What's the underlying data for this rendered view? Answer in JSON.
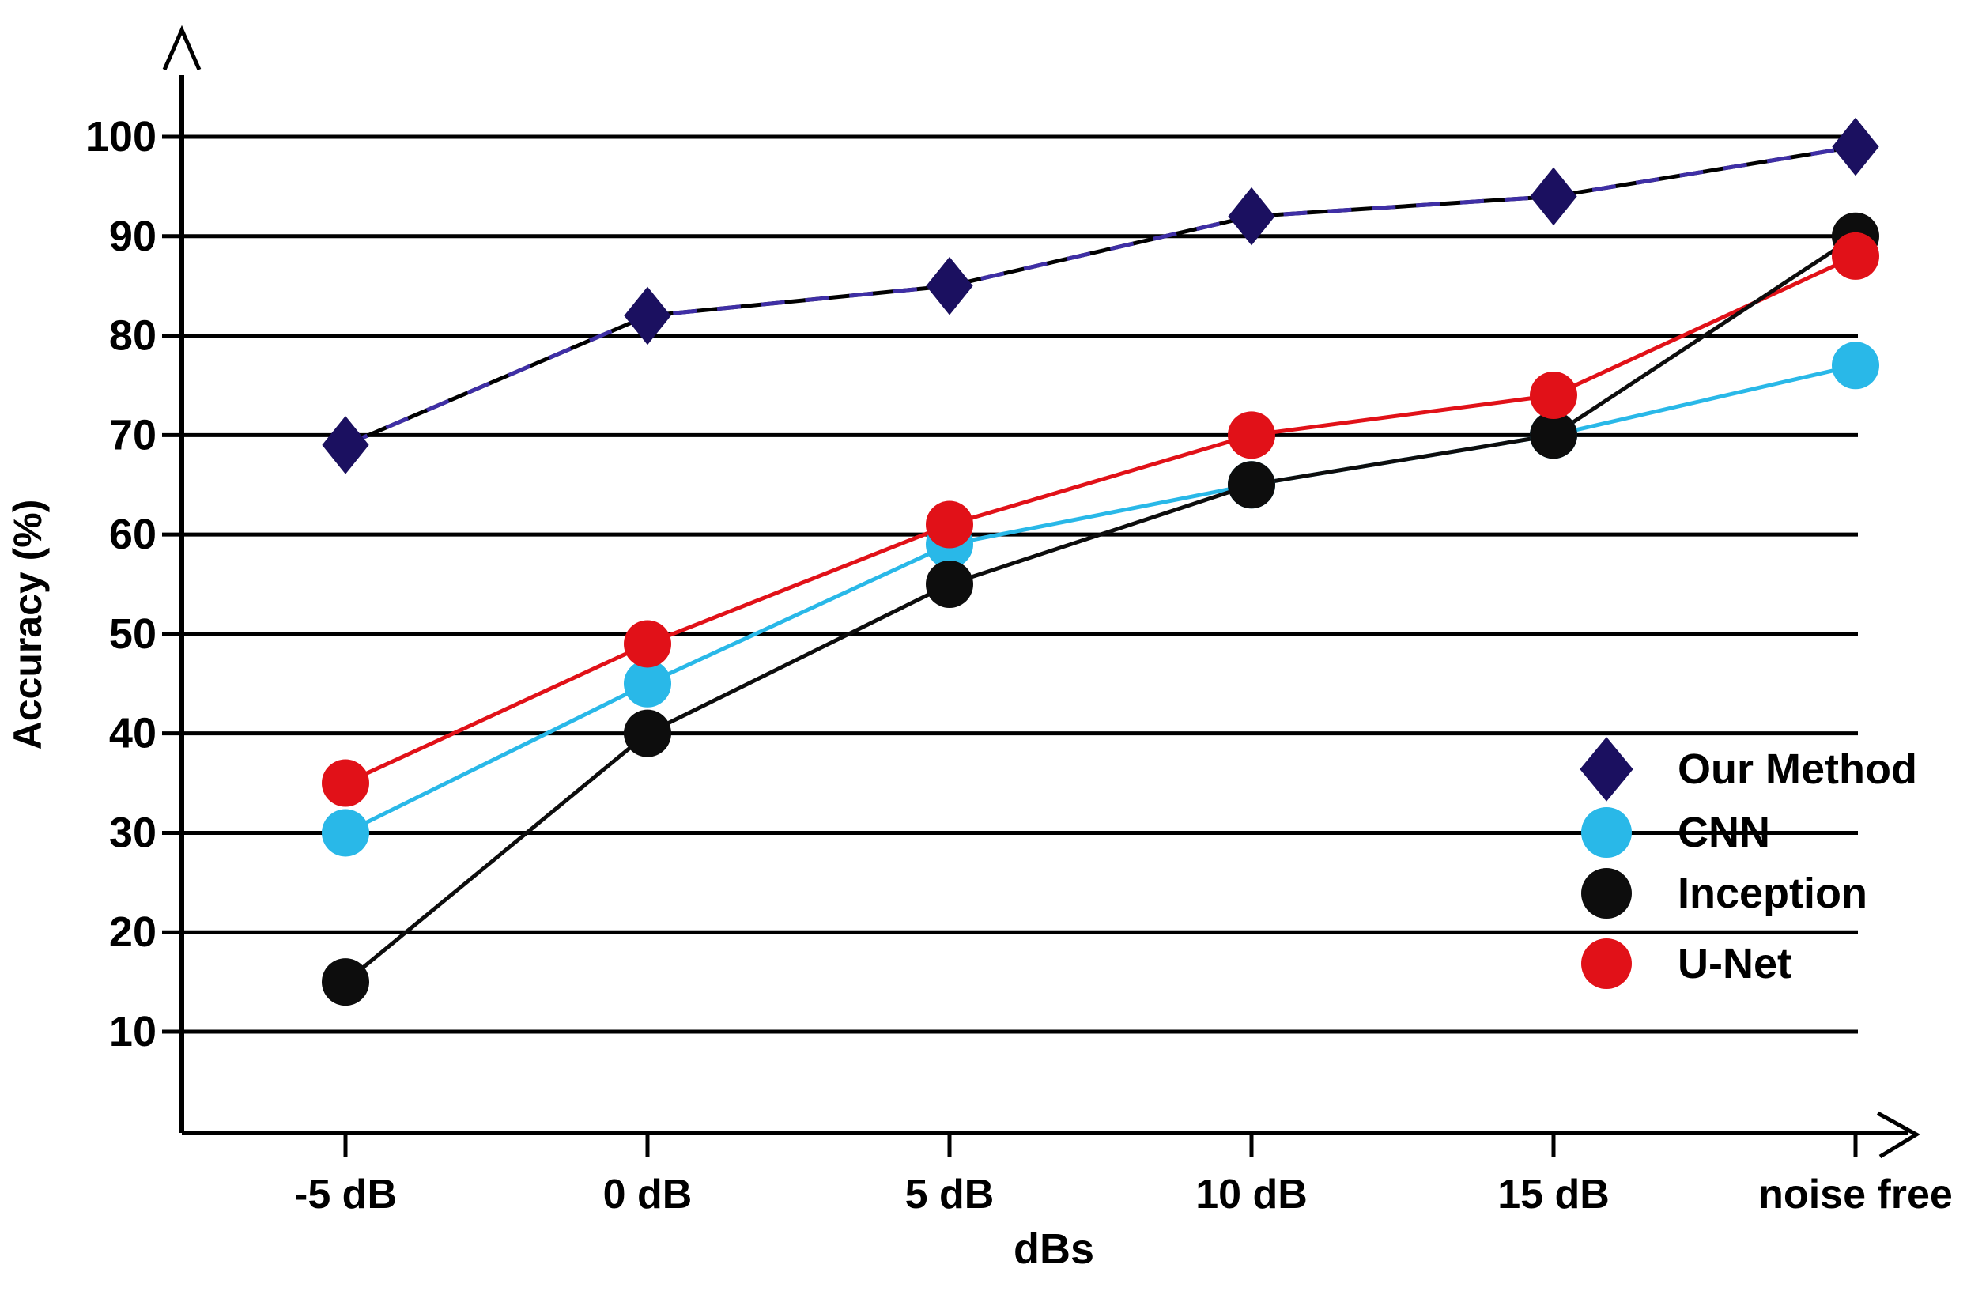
{
  "figure": {
    "background": "#ffffff",
    "frame_color": "#000000"
  },
  "chart_data": {
    "type": "line",
    "title": "",
    "xlabel": "dBs",
    "ylabel": "Accuracy (%)",
    "categories": [
      "-5 dB",
      "0 dB",
      "5 dB",
      "10 dB",
      "15 dB",
      "noise free"
    ],
    "y_ticks": [
      10,
      20,
      30,
      40,
      50,
      60,
      70,
      80,
      90,
      100
    ],
    "ylim": [
      0,
      110
    ],
    "grid": true,
    "grid_color": "#000000",
    "legend_position": "right-middle",
    "legend_border": false,
    "series": [
      {
        "name": "Our Method",
        "marker": "diamond",
        "color": "#1b1060",
        "line_base_color": "#000000",
        "line_dash_color": "#3f2fa6",
        "values": [
          69,
          82,
          85,
          92,
          94,
          99
        ]
      },
      {
        "name": "CNN",
        "marker": "circle",
        "color": "#29b8e8",
        "values": [
          30,
          45,
          59,
          65,
          70,
          77
        ]
      },
      {
        "name": "Inception",
        "marker": "circle",
        "color": "#0d0d0d",
        "values": [
          15,
          40,
          55,
          65,
          70,
          90
        ]
      },
      {
        "name": "U-Net",
        "marker": "circle",
        "color": "#e11118",
        "values": [
          35,
          49,
          61,
          70,
          74,
          88
        ]
      }
    ]
  }
}
